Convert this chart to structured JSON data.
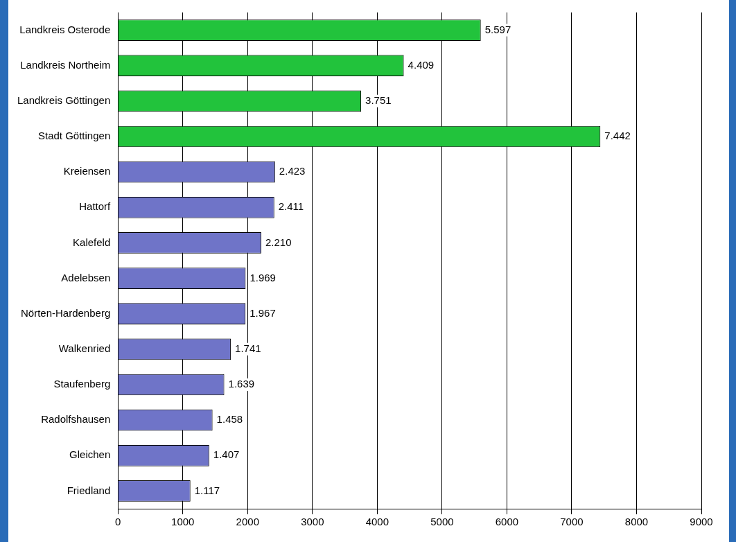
{
  "chart_data": {
    "type": "bar",
    "orientation": "horizontal",
    "categories": [
      "Landkreis Osterode",
      "Landkreis Northeim",
      "Landkreis Göttingen",
      "Stadt Göttingen",
      "Kreiensen",
      "Hattorf",
      "Kalefeld",
      "Adelebsen",
      "Nörten-Hardenberg",
      "Walkenried",
      "Staufenberg",
      "Radolfshausen",
      "Gleichen",
      "Friedland"
    ],
    "values": [
      5597,
      4409,
      3751,
      7442,
      2423,
      2411,
      2210,
      1969,
      1967,
      1741,
      1639,
      1458,
      1407,
      1117
    ],
    "value_labels": [
      "5.597",
      "4.409",
      "3.751",
      "7.442",
      "2.423",
      "2.411",
      "2.210",
      "1.969",
      "1.967",
      "1.741",
      "1.639",
      "1.458",
      "1.407",
      "1.117"
    ],
    "colors": [
      "#22c33c",
      "#22c33c",
      "#22c33c",
      "#22c33c",
      "#6f74c8",
      "#6f74c8",
      "#6f74c8",
      "#6f74c8",
      "#6f74c8",
      "#6f74c8",
      "#6f74c8",
      "#6f74c8",
      "#6f74c8",
      "#6f74c8"
    ],
    "xlim": [
      0,
      9000
    ],
    "xticks": [
      0,
      1000,
      2000,
      3000,
      4000,
      5000,
      6000,
      7000,
      8000,
      9000
    ],
    "grid": "x",
    "legend": false
  }
}
